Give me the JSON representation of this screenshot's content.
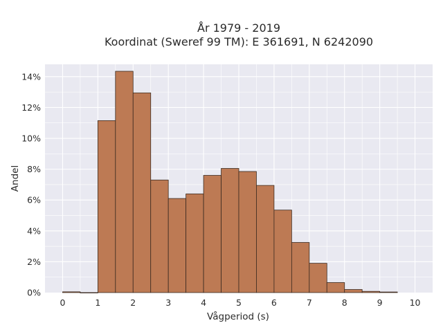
{
  "chart_data": {
    "type": "bar",
    "title_lines": [
      "År 1979 - 2019",
      "Koordinat (Sweref 99 TM): E 361691, N 6242090"
    ],
    "xlabel": "Vågperiod (s)",
    "ylabel": "Andel",
    "xlim": [
      -0.5,
      10.5
    ],
    "ylim": [
      0,
      14.8
    ],
    "x_ticks": [
      0,
      1,
      2,
      3,
      4,
      5,
      6,
      7,
      8,
      9,
      10
    ],
    "x_tick_labels": [
      "0",
      "1",
      "2",
      "3",
      "4",
      "5",
      "6",
      "7",
      "8",
      "9",
      "10"
    ],
    "y_ticks": [
      0,
      2,
      4,
      6,
      8,
      10,
      12,
      14
    ],
    "y_tick_labels": [
      "0%",
      "2%",
      "4%",
      "6%",
      "8%",
      "10%",
      "12%",
      "14%"
    ],
    "bin_width": 0.5,
    "bins": [
      {
        "x0": 0.0,
        "value": 0.05
      },
      {
        "x0": 0.5,
        "value": 0.0
      },
      {
        "x0": 1.0,
        "value": 11.15
      },
      {
        "x0": 1.5,
        "value": 14.35
      },
      {
        "x0": 2.0,
        "value": 12.95
      },
      {
        "x0": 2.5,
        "value": 7.3
      },
      {
        "x0": 3.0,
        "value": 6.1
      },
      {
        "x0": 3.5,
        "value": 6.4
      },
      {
        "x0": 4.0,
        "value": 7.6
      },
      {
        "x0": 4.5,
        "value": 8.05
      },
      {
        "x0": 5.0,
        "value": 7.85
      },
      {
        "x0": 5.5,
        "value": 6.95
      },
      {
        "x0": 6.0,
        "value": 5.35
      },
      {
        "x0": 6.5,
        "value": 3.25
      },
      {
        "x0": 7.0,
        "value": 1.9
      },
      {
        "x0": 7.5,
        "value": 0.65
      },
      {
        "x0": 8.0,
        "value": 0.2
      },
      {
        "x0": 8.5,
        "value": 0.08
      },
      {
        "x0": 9.0,
        "value": 0.04
      }
    ],
    "grid": true,
    "colors": {
      "bar_fill": "#bd7a54",
      "bar_stroke": "#3a2a20",
      "plot_bg": "#e9e9f1",
      "grid": "#ffffff"
    }
  }
}
